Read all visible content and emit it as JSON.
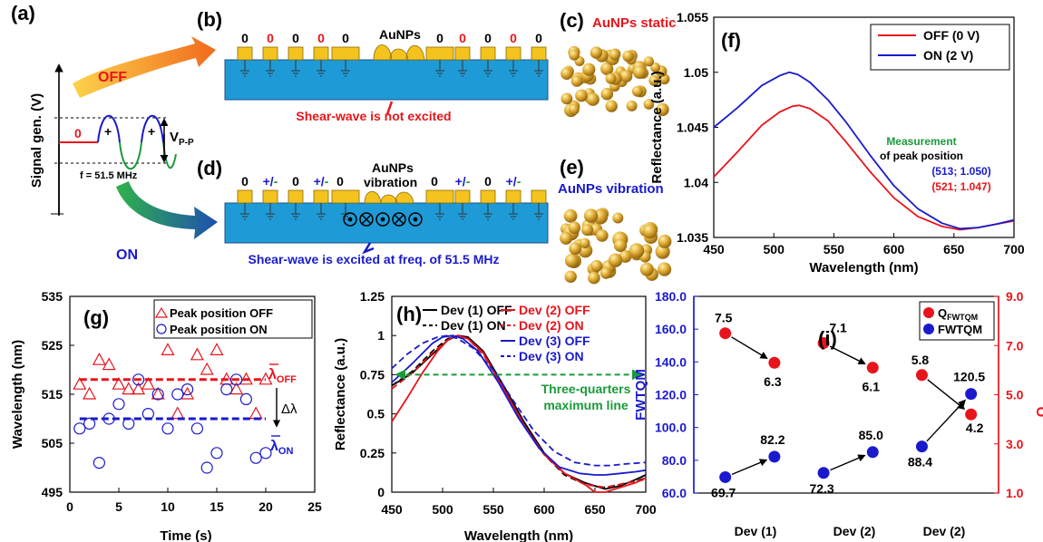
{
  "panels": {
    "a": {
      "label": "(a)",
      "ylabel": "Signal gen. (V)",
      "zero": "0",
      "plus": "+",
      "vpp_main": "V",
      "vpp_sub": "P-P",
      "freq": "f = 51.5 MHz",
      "off": "OFF",
      "on": "ON"
    },
    "b": {
      "label": "(b)",
      "voltages": [
        "0",
        "0",
        "0",
        "0",
        "0",
        "0",
        "0",
        "0",
        "0",
        "0"
      ],
      "voltage_colors": [
        "#000000",
        "#e8141b",
        "#000000",
        "#e8141b",
        "#000000",
        "#000000",
        "#e8141b",
        "#000000",
        "#e8141b",
        "#000000"
      ],
      "aunps": "AuNPs",
      "caption": "Shear-wave is not excited"
    },
    "c": {
      "label": "(c)",
      "title": "AuNPs static"
    },
    "d": {
      "label": "(d)",
      "zeros": [
        "0",
        "0",
        "0",
        "0",
        "0"
      ],
      "pm": [
        "+/-",
        "+/-",
        "+/-",
        "+/-"
      ],
      "plus_part": "+/",
      "minus_part": "-",
      "aunps1": "AuNPs",
      "aunps2": "vibration",
      "caption": "Shear-wave is excited at freq. of 51.5 MHz"
    },
    "e": {
      "label": "(e)",
      "title": "AuNPs vibration"
    },
    "f": {
      "label": "(f)",
      "measurement": "Measurement",
      "of_peak": "of peak position",
      "on_point": "(513; 1.050)",
      "off_point": "(521; 1.047)"
    },
    "g": {
      "label": "(g)",
      "lam_off": "OFF",
      "lam_on": "ON",
      "lam": "λ",
      "delta": "Δλ"
    },
    "h": {
      "label": "(h)",
      "three_q1": "Three-quarters",
      "three_q2": "maximum line"
    },
    "i": {
      "label": "(i)"
    }
  },
  "chart_data": [
    {
      "id": "f",
      "type": "line",
      "xlabel": "Wavelength (nm)",
      "ylabel": "Reflectance (a.u.)",
      "xlim": [
        450,
        700
      ],
      "ylim": [
        1.035,
        1.055
      ],
      "xticks": [
        "450",
        "500",
        "550",
        "600",
        "650",
        "700"
      ],
      "yticks": [
        "1.035",
        "1.04",
        "1.045",
        "1.05",
        "1.055"
      ],
      "legend_position": "top-right",
      "series": [
        {
          "name": "OFF (0 V)",
          "color": "#e8141b",
          "x": [
            450,
            470,
            490,
            505,
            515,
            521,
            530,
            545,
            560,
            580,
            600,
            620,
            640,
            655,
            670,
            685,
            700
          ],
          "y": [
            1.0405,
            1.0428,
            1.0452,
            1.0464,
            1.0469,
            1.047,
            1.0467,
            1.0456,
            1.0437,
            1.041,
            1.0386,
            1.0369,
            1.036,
            1.0357,
            1.0359,
            1.0362,
            1.0365
          ]
        },
        {
          "name": "ON (2 V)",
          "color": "#1a1acc",
          "x": [
            450,
            470,
            490,
            505,
            513,
            520,
            530,
            545,
            560,
            580,
            600,
            620,
            640,
            655,
            670,
            685,
            700
          ],
          "y": [
            1.045,
            1.0468,
            1.0488,
            1.0497,
            1.05,
            1.0498,
            1.0491,
            1.0475,
            1.0455,
            1.0425,
            1.0397,
            1.0376,
            1.0363,
            1.0358,
            1.0359,
            1.0362,
            1.0366
          ]
        }
      ]
    },
    {
      "id": "g",
      "type": "scatter",
      "xlabel": "Time (s)",
      "ylabel": "Wavelength (nm)",
      "xlim": [
        0,
        25
      ],
      "ylim": [
        495,
        535
      ],
      "xticks": [
        "0",
        "5",
        "10",
        "15",
        "20",
        "25"
      ],
      "yticks": [
        "495",
        "505",
        "515",
        "525",
        "535"
      ],
      "legend_position": "top-right",
      "series": [
        {
          "name": "Peak position OFF",
          "color": "#e8141b",
          "marker": "triangle",
          "x": [
            1,
            2,
            3,
            4,
            5,
            6,
            7,
            8,
            9,
            10,
            11,
            12,
            13,
            14,
            15,
            16,
            17,
            18,
            19,
            20
          ],
          "y": [
            517,
            515,
            522,
            521,
            517,
            516,
            516,
            517,
            515,
            524,
            511,
            515,
            523,
            520,
            524,
            518,
            516,
            518,
            511,
            518
          ]
        },
        {
          "name": "Peak position ON",
          "color": "#1a1acc",
          "marker": "circle",
          "x": [
            1,
            2,
            3,
            4,
            5,
            6,
            7,
            8,
            9,
            10,
            11,
            12,
            13,
            14,
            15,
            16,
            17,
            18,
            19,
            20
          ],
          "y": [
            508,
            509,
            501,
            510,
            513,
            509,
            518,
            511,
            515,
            508,
            515,
            516,
            508,
            500,
            503,
            516,
            518,
            514,
            502,
            503
          ]
        },
        {
          "name": "mean OFF",
          "color": "#e8141b",
          "style": "dashed",
          "x": [
            1,
            20
          ],
          "y": [
            518,
            518
          ]
        },
        {
          "name": "mean ON",
          "color": "#1a1acc",
          "style": "dashed",
          "x": [
            1,
            20
          ],
          "y": [
            510,
            510
          ]
        }
      ]
    },
    {
      "id": "h",
      "type": "line",
      "xlabel": "Wavelength (nm)",
      "ylabel": "Reflectance (a.u.)",
      "xlim": [
        450,
        700
      ],
      "ylim": [
        0,
        1.25
      ],
      "xticks": [
        "450",
        "500",
        "550",
        "600",
        "650",
        "700"
      ],
      "yticks": [
        "0",
        "0.25",
        "0.5",
        "0.75",
        "1",
        "1.25"
      ],
      "legend_position": "top",
      "series": [
        {
          "name": "Dev (1) OFF",
          "color": "#000000",
          "style": "solid",
          "x": [
            450,
            470,
            490,
            505,
            515,
            525,
            540,
            560,
            580,
            600,
            620,
            640,
            650,
            660,
            675,
            690,
            700
          ],
          "y": [
            0.68,
            0.76,
            0.88,
            0.97,
            1.0,
            0.99,
            0.9,
            0.68,
            0.45,
            0.25,
            0.12,
            0.06,
            0.04,
            0.02,
            0.04,
            0.08,
            0.11
          ]
        },
        {
          "name": "Dev (1) ON",
          "color": "#000000",
          "style": "dashed",
          "x": [
            450,
            470,
            490,
            505,
            515,
            525,
            540,
            560,
            580,
            600,
            620,
            640,
            650,
            660,
            675,
            690,
            700
          ],
          "y": [
            0.68,
            0.77,
            0.9,
            0.98,
            1.0,
            0.98,
            0.89,
            0.66,
            0.43,
            0.24,
            0.11,
            0.05,
            0.04,
            0.03,
            0.05,
            0.07,
            0.09
          ]
        },
        {
          "name": "Dev (2) OFF",
          "color": "#e8141b",
          "style": "solid",
          "x": [
            450,
            465,
            480,
            495,
            505,
            515,
            525,
            540,
            560,
            580,
            600,
            620,
            640,
            650,
            660,
            675,
            690,
            700
          ],
          "y": [
            0.45,
            0.6,
            0.76,
            0.9,
            0.97,
            1.0,
            0.98,
            0.89,
            0.66,
            0.43,
            0.24,
            0.12,
            0.05,
            0.0,
            0.0,
            0.03,
            0.06,
            0.09
          ]
        },
        {
          "name": "Dev (2) ON",
          "color": "#e8141b",
          "style": "dashed",
          "x": [
            450,
            470,
            490,
            505,
            515,
            525,
            540,
            560,
            580,
            600,
            620,
            640,
            650,
            660,
            675,
            690,
            700
          ],
          "y": [
            0.66,
            0.76,
            0.89,
            0.97,
            1.0,
            0.98,
            0.88,
            0.66,
            0.43,
            0.24,
            0.12,
            0.05,
            0.04,
            0.03,
            0.05,
            0.07,
            0.08
          ]
        },
        {
          "name": "Dev (3) OFF",
          "color": "#1a1acc",
          "style": "solid",
          "x": [
            450,
            470,
            490,
            500,
            510,
            520,
            535,
            555,
            575,
            595,
            615,
            635,
            650,
            660,
            675,
            690,
            700
          ],
          "y": [
            0.7,
            0.82,
            0.95,
            0.99,
            1.0,
            0.98,
            0.9,
            0.7,
            0.47,
            0.28,
            0.16,
            0.12,
            0.11,
            0.11,
            0.12,
            0.13,
            0.14
          ]
        },
        {
          "name": "Dev (3) ON",
          "color": "#1a1acc",
          "style": "dashed",
          "x": [
            450,
            465,
            480,
            495,
            505,
            515,
            530,
            550,
            570,
            590,
            610,
            630,
            650,
            665,
            680,
            700
          ],
          "y": [
            0.79,
            0.88,
            0.95,
            0.99,
            1.0,
            0.98,
            0.92,
            0.78,
            0.58,
            0.39,
            0.26,
            0.19,
            0.17,
            0.17,
            0.18,
            0.19
          ]
        },
        {
          "name": "Three-quarters maximum line",
          "color": "#1a9a3a",
          "style": "dashed",
          "x": [
            450,
            700
          ],
          "y": [
            0.75,
            0.75
          ]
        }
      ]
    },
    {
      "id": "i",
      "type": "scatter",
      "xlabel": "",
      "ylabel": "FWTQM",
      "ylabel_right_main": "Q",
      "ylabel_right_sub": "FWTQM",
      "ylim": [
        60,
        180
      ],
      "ylim_right": [
        1,
        9
      ],
      "yticks": [
        "60.0",
        "80.0",
        "100.0",
        "120.0",
        "140.0",
        "160.0",
        "180.0"
      ],
      "yticks_right": [
        "1.0",
        "3.0",
        "5.0",
        "7.0",
        "9.0"
      ],
      "categories": [
        "Dev (1)",
        "Dev (2)",
        "Dev (2)"
      ],
      "legend_position": "top-right",
      "series": [
        {
          "name_main": "Q",
          "name_sub": "FWTQM",
          "axis": "right",
          "color": "#e8141b",
          "x": [
            0.82,
            1.32,
            1.82,
            2.32,
            2.82,
            3.32
          ],
          "y": [
            7.5,
            6.3,
            7.1,
            6.1,
            5.8,
            4.2
          ],
          "labels": [
            "7.5",
            "6.3",
            "7.1",
            "6.1",
            "5.8",
            "4.2"
          ]
        },
        {
          "name_main": "FWTQM",
          "axis": "left",
          "color": "#1a1acc",
          "x": [
            0.82,
            1.32,
            1.82,
            2.32,
            2.82,
            3.32
          ],
          "y": [
            69.7,
            82.2,
            72.3,
            85.0,
            88.4,
            120.5
          ],
          "labels": [
            "69.7",
            "82.2",
            "72.3",
            "85.0",
            "88.4",
            "120.5"
          ]
        }
      ]
    }
  ]
}
